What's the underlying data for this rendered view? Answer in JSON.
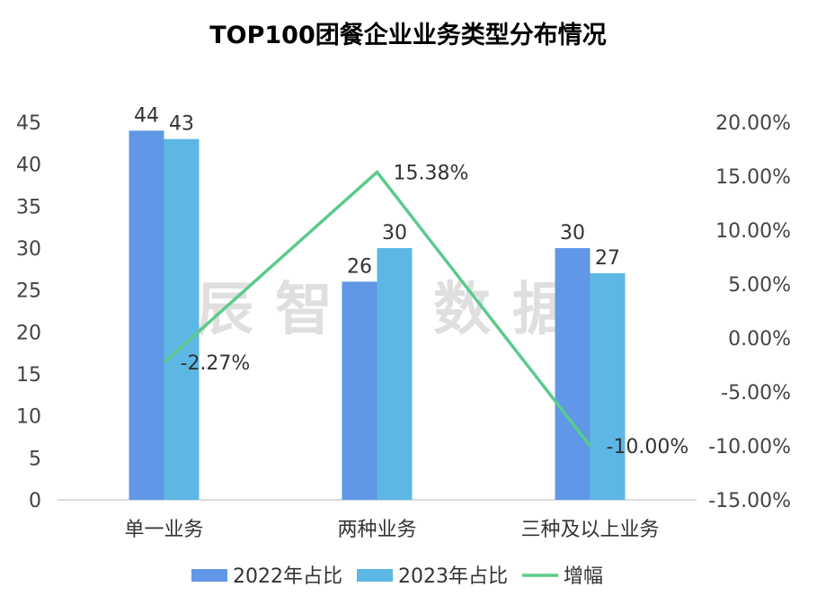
{
  "watermark": "辰智大数据",
  "chart_data": {
    "type": "bar",
    "title": "TOP100团餐企业业务类型分布情况",
    "categories": [
      "单一业务",
      "两种业务",
      "三种及以上业务"
    ],
    "series": [
      {
        "name": "2022年占比",
        "type": "bar",
        "axis": "left",
        "color": "#6097E6",
        "values": [
          44,
          26,
          30
        ]
      },
      {
        "name": "2023年占比",
        "type": "bar",
        "axis": "left",
        "color": "#5CB7E5",
        "values": [
          43,
          30,
          27
        ]
      },
      {
        "name": "增幅",
        "type": "line",
        "axis": "right",
        "color": "#5ACB8C",
        "values": [
          -2.27,
          15.38,
          -10.0
        ],
        "labels": [
          "-2.27%",
          "15.38%",
          "-10.00%"
        ]
      }
    ],
    "y_left": {
      "min": 0,
      "max": 45,
      "step": 5,
      "ticks": [
        "0",
        "5",
        "10",
        "15",
        "20",
        "25",
        "30",
        "35",
        "40",
        "45"
      ]
    },
    "y_right": {
      "min": -15,
      "max": 20,
      "step": 5,
      "ticks": [
        "-15.00%",
        "-10.00%",
        "-5.00%",
        "0.00%",
        "5.00%",
        "10.00%",
        "15.00%",
        "20.00%"
      ]
    },
    "legend": {
      "position": "bottom",
      "items": [
        "2022年占比",
        "2023年占比",
        "增幅"
      ]
    },
    "grid": false
  }
}
